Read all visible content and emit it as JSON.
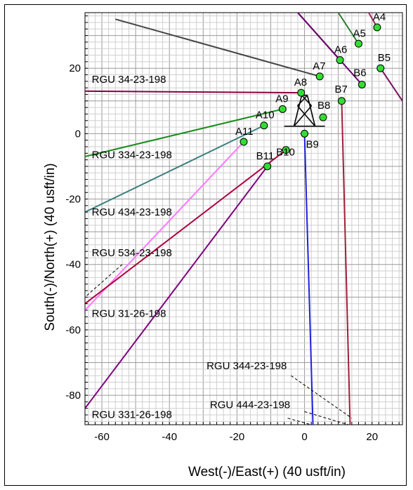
{
  "chart_data": {
    "type": "scatter",
    "title": "",
    "xlabel": "West(-)/East(+) (40 usft/in)",
    "ylabel": "South(-)/North(+) (40 usft/in)",
    "xlim": [
      -65,
      29
    ],
    "ylim": [
      -89,
      37
    ],
    "x_ticks": [
      -60,
      -40,
      -20,
      0,
      20
    ],
    "y_ticks": [
      -80,
      -60,
      -40,
      -20,
      0,
      20
    ],
    "minor_grid_step": 2,
    "major_grid_step": 10,
    "grid": true,
    "rig_symbol": {
      "x": 0,
      "y": 7
    },
    "slots": [
      {
        "name": "A4",
        "x": 21.5,
        "y": 32.5
      },
      {
        "name": "A5",
        "x": 16,
        "y": 27.5
      },
      {
        "name": "A6",
        "x": 10.5,
        "y": 22.5
      },
      {
        "name": "A7",
        "x": 4.5,
        "y": 17.5
      },
      {
        "name": "A8",
        "x": -1,
        "y": 12.5
      },
      {
        "name": "A9",
        "x": -6.5,
        "y": 7.5
      },
      {
        "name": "A10",
        "x": -12,
        "y": 2.5
      },
      {
        "name": "A11",
        "x": -18,
        "y": -2.5
      },
      {
        "name": "B5",
        "x": 22.5,
        "y": 20
      },
      {
        "name": "B6",
        "x": 17,
        "y": 15
      },
      {
        "name": "B7",
        "x": 11,
        "y": 10
      },
      {
        "name": "B8",
        "x": 5.5,
        "y": 5
      },
      {
        "name": "B9",
        "x": 0,
        "y": 0
      },
      {
        "name": "B10",
        "x": -5.5,
        "y": -5
      },
      {
        "name": "B11",
        "x": -11,
        "y": -10
      }
    ],
    "well_paths": [
      {
        "color": "#444444",
        "points": [
          [
            4.5,
            17.5
          ],
          [
            -56,
            35
          ]
        ]
      },
      {
        "color": "#2e7d32",
        "points": [
          [
            16,
            27.5
          ],
          [
            10,
            37
          ]
        ]
      },
      {
        "color": "#800080",
        "points": [
          [
            10.5,
            22.5
          ],
          [
            -2,
            37
          ]
        ]
      },
      {
        "color": "#a0285a",
        "points": [
          [
            21.5,
            32.5
          ],
          [
            19,
            37
          ]
        ]
      },
      {
        "color": "#660066",
        "points": [
          [
            17,
            15
          ],
          [
            -2,
            37
          ]
        ]
      },
      {
        "color": "#880040",
        "points": [
          [
            -1,
            12.5
          ],
          [
            -65,
            13
          ]
        ]
      },
      {
        "color": "#1a8c1a",
        "points": [
          [
            -6.5,
            7.5
          ],
          [
            -65,
            -7
          ]
        ]
      },
      {
        "color": "#3d7f80",
        "points": [
          [
            -12,
            2.5
          ],
          [
            -65,
            -24
          ]
        ]
      },
      {
        "color": "#ff77ff",
        "points": [
          [
            -18,
            -2.5
          ],
          [
            -65,
            -54
          ]
        ]
      },
      {
        "color": "#b00040",
        "points": [
          [
            -5.5,
            -5
          ],
          [
            -65,
            -52
          ]
        ]
      },
      {
        "color": "#800080",
        "points": [
          [
            -11,
            -10
          ],
          [
            -65,
            -84
          ]
        ]
      },
      {
        "color": "#2222dd",
        "points": [
          [
            0,
            0
          ],
          [
            2.5,
            -89
          ]
        ]
      },
      {
        "color": "#a0203a",
        "points": [
          [
            11,
            10
          ],
          [
            13.5,
            -89
          ]
        ]
      },
      {
        "color": "#7a1060",
        "points": [
          [
            22.5,
            20
          ],
          [
            29,
            10
          ]
        ]
      }
    ],
    "dashed_paths": [
      {
        "points": [
          [
            -54,
            -40
          ],
          [
            -65,
            -50
          ]
        ]
      },
      {
        "points": [
          [
            -4,
            -74
          ],
          [
            14,
            -87
          ]
        ]
      },
      {
        "points": [
          [
            0,
            -85
          ],
          [
            13,
            -89
          ]
        ]
      },
      {
        "points": [
          [
            -5,
            -87
          ],
          [
            2,
            -89
          ]
        ]
      }
    ],
    "annotations": [
      {
        "text": "RGU 34-23-198",
        "x": -63,
        "y": 15.5
      },
      {
        "text": "RGU 334-23-198",
        "x": -63,
        "y": -7.5
      },
      {
        "text": "RGU 434-23-198",
        "x": -63,
        "y": -25
      },
      {
        "text": "RGU 534-23-198",
        "x": -63,
        "y": -37.5
      },
      {
        "text": "RGU 31-26-198",
        "x": -63,
        "y": -56
      },
      {
        "text": "RGU 331-26-198",
        "x": -63,
        "y": -87
      },
      {
        "text": "RGU 344-23-198",
        "x": -29,
        "y": -72
      },
      {
        "text": "RGU 444-23-198",
        "x": -28,
        "y": -84
      }
    ]
  }
}
